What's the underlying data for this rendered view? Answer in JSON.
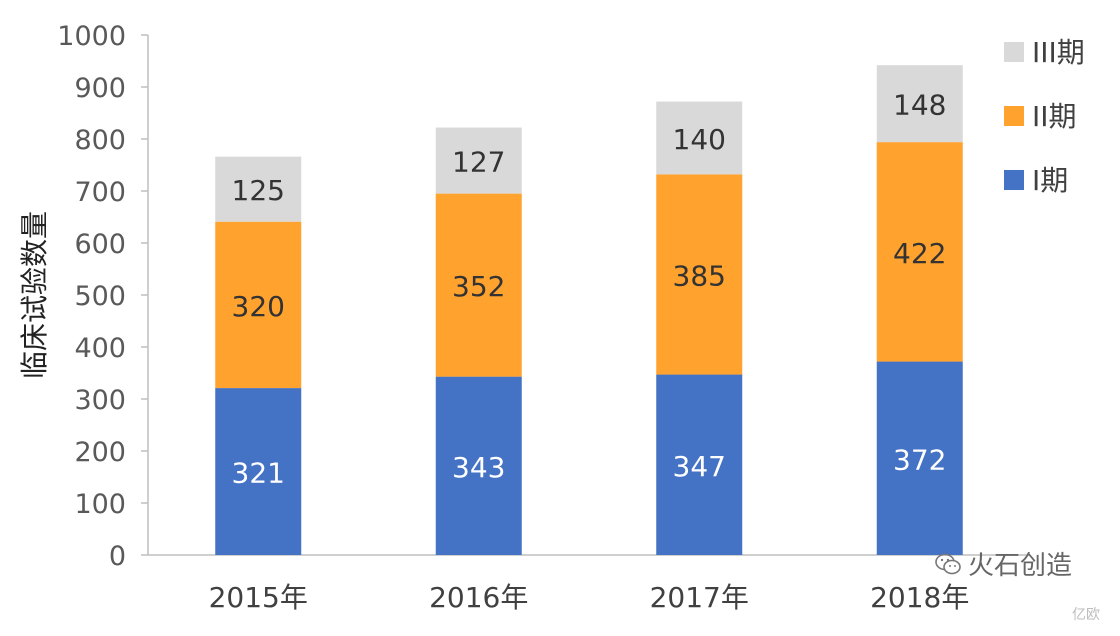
{
  "chart_data": {
    "type": "bar",
    "stacked": true,
    "categories": [
      "2015年",
      "2016年",
      "2017年",
      "2018年"
    ],
    "series": [
      {
        "name": "I期",
        "color": "#4472C4",
        "label_color": "#ffffff",
        "values": [
          321,
          343,
          347,
          372
        ]
      },
      {
        "name": "II期",
        "color": "#FFA22E",
        "label_color": "#333333",
        "values": [
          320,
          352,
          385,
          422
        ]
      },
      {
        "name": "III期",
        "color": "#D9D9D9",
        "label_color": "#333333",
        "values": [
          125,
          127,
          140,
          148
        ]
      }
    ],
    "title": "",
    "xlabel": "",
    "ylabel": "临床试验数量",
    "ylim": [
      0,
      1000
    ],
    "yticks": [
      "0",
      "100",
      "200",
      "300",
      "400",
      "500",
      "600",
      "700",
      "800",
      "900",
      "1000"
    ],
    "grid": false,
    "legend_position": "top-right"
  },
  "watermark": {
    "main": "火石创造",
    "sub": "亿欧",
    "icon": "wechat-icon"
  }
}
